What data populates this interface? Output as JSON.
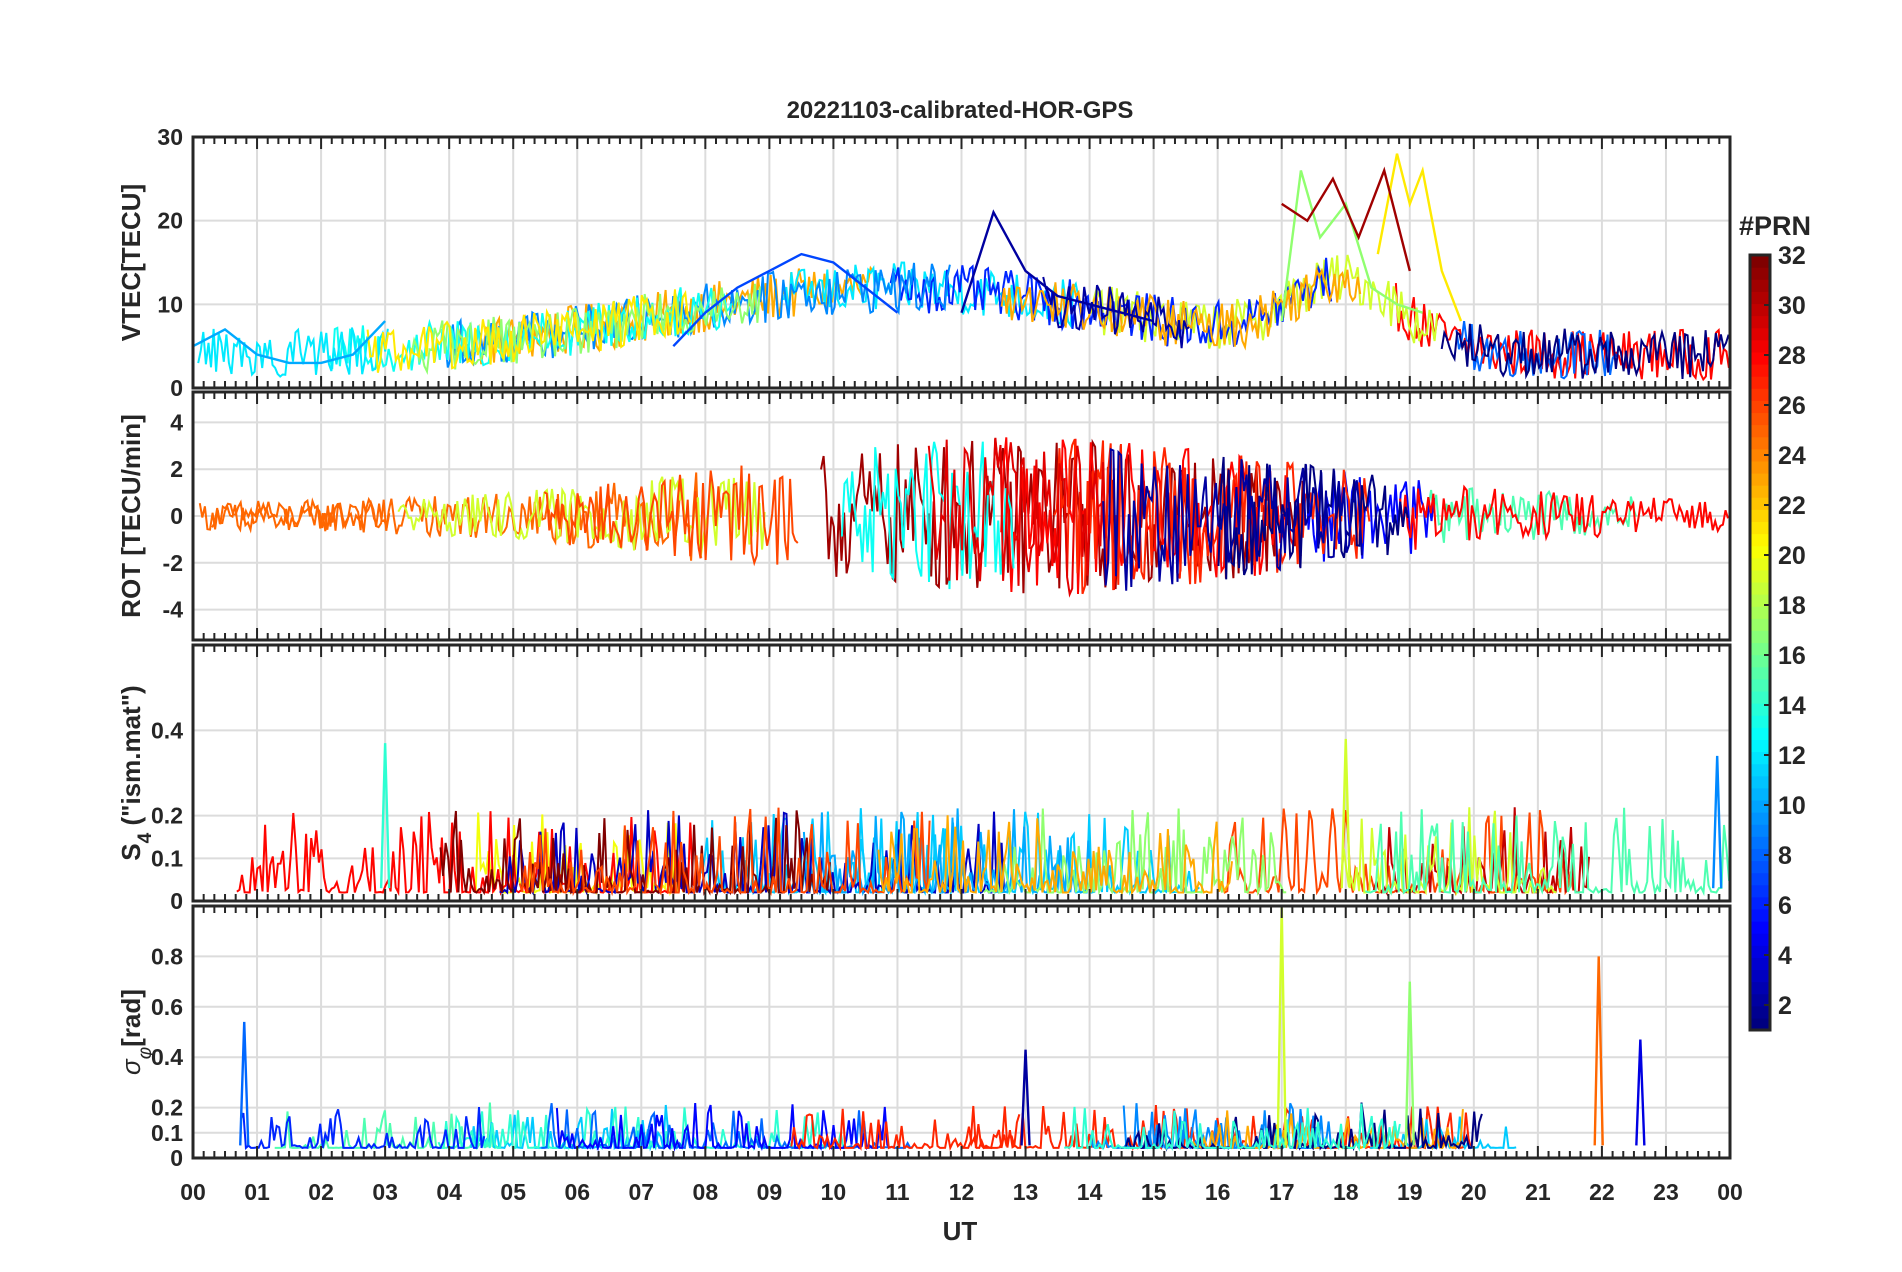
{
  "figure": {
    "title": "20221103-calibrated-HOR-GPS",
    "xlabel": "UT"
  },
  "chart_data": {
    "type": "line",
    "title": "20221103-calibrated-HOR-GPS",
    "xlabel": "UT",
    "x_ticks": [
      "00",
      "01",
      "02",
      "03",
      "04",
      "05",
      "06",
      "07",
      "08",
      "09",
      "10",
      "11",
      "12",
      "13",
      "14",
      "15",
      "16",
      "17",
      "18",
      "19",
      "20",
      "21",
      "22",
      "23",
      "00"
    ],
    "xlim": [
      0,
      24
    ],
    "grid": true,
    "colorbar": {
      "label": "#PRN",
      "range": [
        1,
        32
      ],
      "ticks": [
        "2",
        "4",
        "6",
        "8",
        "10",
        "12",
        "14",
        "16",
        "18",
        "20",
        "22",
        "24",
        "26",
        "28",
        "30",
        "32"
      ],
      "colormap": "jet"
    },
    "panels": [
      {
        "name": "vtec",
        "ylabel": "VTEC[TECU]",
        "ylim": [
          0,
          30
        ],
        "y_ticks": [
          "0",
          "10",
          "20",
          "30"
        ],
        "series": [
          {
            "prn": 2,
            "x": [
              12.0,
              12.5,
              13.0,
              13.5,
              14.0,
              14.5,
              15.0
            ],
            "y": [
              9,
              21,
              14,
              11,
              10,
              9,
              8
            ]
          },
          {
            "prn": 7,
            "x": [
              7.5,
              8.0,
              8.5,
              9.0,
              9.5,
              10.0,
              10.5,
              11.0
            ],
            "y": [
              5,
              9,
              12,
              14,
              16,
              15,
              12,
              9
            ]
          },
          {
            "prn": 10,
            "x": [
              0.0,
              0.5,
              1.0,
              1.5,
              2.0,
              2.5,
              3.0
            ],
            "y": [
              5,
              7,
              4,
              3,
              3,
              4,
              8
            ]
          },
          {
            "prn": 17,
            "x": [
              17.0,
              17.3,
              17.6,
              18.0,
              18.4,
              18.8,
              19.2
            ],
            "y": [
              8,
              26,
              18,
              22,
              12,
              10,
              9
            ]
          },
          {
            "prn": 21,
            "x": [
              18.5,
              18.8,
              19.0,
              19.2,
              19.5,
              19.8
            ],
            "y": [
              16,
              28,
              22,
              26,
              14,
              8
            ]
          },
          {
            "prn": 31,
            "x": [
              17.0,
              17.4,
              17.8,
              18.2,
              18.6,
              19.0
            ],
            "y": [
              22,
              20,
              25,
              18,
              26,
              14
            ]
          }
        ]
      },
      {
        "name": "rot",
        "ylabel": "ROT [TECU/min]",
        "ylim": [
          -5.3,
          5.3
        ],
        "y_ticks": [
          "-4",
          "-2",
          "0",
          "2",
          "4"
        ],
        "series": []
      },
      {
        "name": "s4",
        "ylabel": "S4 (\"ism.mat\")",
        "ylabel_main": "S",
        "ylabel_sub": "4",
        "ylabel_rest": " (\"ism.mat\")",
        "ylim": [
          0,
          0.6
        ],
        "y_ticks": [
          "0",
          "0.1",
          "0.2",
          "0.4"
        ],
        "series": [
          {
            "prn": 14,
            "x": [
              3.0
            ],
            "y": [
              0.37
            ]
          },
          {
            "prn": 19,
            "x": [
              18.0
            ],
            "y": [
              0.38
            ]
          },
          {
            "prn": 9,
            "x": [
              23.8
            ],
            "y": [
              0.34
            ]
          }
        ]
      },
      {
        "name": "sigma_phi",
        "ylabel": "σφ[rad]",
        "ylabel_main": "σ",
        "ylabel_sub": "φ",
        "ylabel_rest": "[rad]",
        "ylim": [
          0,
          1.0
        ],
        "y_ticks": [
          "0",
          "0.1",
          "0.2",
          "0.4",
          "0.6",
          "0.8"
        ],
        "series": [
          {
            "prn": 8,
            "x": [
              0.8
            ],
            "y": [
              0.54
            ]
          },
          {
            "prn": 19,
            "x": [
              17.0
            ],
            "y": [
              1.0
            ]
          },
          {
            "prn": 17,
            "x": [
              19.0
            ],
            "y": [
              0.7
            ]
          },
          {
            "prn": 25,
            "x": [
              21.95
            ],
            "y": [
              0.8
            ]
          },
          {
            "prn": 4,
            "x": [
              22.6
            ],
            "y": [
              0.47
            ]
          },
          {
            "prn": 2,
            "x": [
              13.0
            ],
            "y": [
              0.43
            ]
          }
        ]
      }
    ]
  }
}
